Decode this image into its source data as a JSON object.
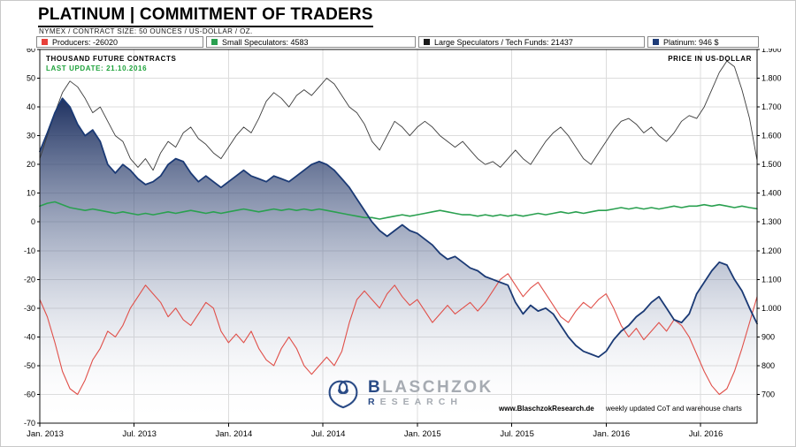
{
  "header": {
    "title": "PLATINUM | COMMITMENT OF TRADERS",
    "subtitle": "NYMEX / CONTRACT SIZE: 50 OUNCES / US-DOLLAR / OZ."
  },
  "legend": {
    "items": [
      {
        "label": "Producers: -26020",
        "color": "#e8403a"
      },
      {
        "label": "Small Speculators: 4583",
        "color": "#2aa050"
      },
      {
        "label": "Large Speculators / Tech Funds:  21437",
        "color": "#1a1a1a"
      },
      {
        "label": "Platinum: 946 $",
        "color": "#1e3c78"
      }
    ]
  },
  "chart": {
    "left_axis_title": "THOUSAND FUTURE CONTRACTS",
    "last_update": "LAST UPDATE: 21.10.2016",
    "right_axis_title": "PRICE IN US-DOLLAR",
    "footer_url": "www.BlaschzokResearch.de",
    "footer_note": "weekly updated CoT and warehouse charts",
    "watermark": {
      "b1": "B",
      "rest1": "LASCHZOK",
      "b2": "R",
      "rest2": "ESEARCH"
    }
  },
  "chart_data": {
    "type": "line",
    "title": "Platinum | Commitment of Traders",
    "x_unit": "years since Jan 2013, uniform sampling",
    "x_range": [
      0,
      3.8
    ],
    "x_tick_positions": [
      0,
      0.5,
      1.0,
      1.5,
      2.0,
      2.5,
      3.0,
      3.5
    ],
    "x_tick_labels": [
      "Jan. 2013",
      "Jul. 2013",
      "Jan. 2014",
      "Jul. 2014",
      "Jan. 2015",
      "Jul. 2015",
      "Jan. 2016",
      "Jul. 2016"
    ],
    "left_ylim": [
      -70,
      60
    ],
    "left_ticks": [
      60,
      50,
      40,
      30,
      20,
      10,
      0,
      -10,
      -20,
      -30,
      -40,
      -50,
      -60,
      -70
    ],
    "right_axis": {
      "labels": [
        "1.900",
        "1.800",
        "1.700",
        "1.600",
        "1.500",
        "1.400",
        "1.300",
        "1.200",
        "1.100",
        "1.000",
        "900",
        "800",
        "700"
      ],
      "prices": [
        1900,
        1800,
        1700,
        1600,
        1500,
        1400,
        1300,
        1200,
        1100,
        1000,
        900,
        800,
        700
      ],
      "price_at_v0": 1300,
      "price_per_unit": 10
    },
    "grid": true,
    "legend_position": "top",
    "series": [
      {
        "name": "Producers",
        "axis": "left",
        "color": "#e0504a",
        "line_width": 1.1,
        "values": [
          -27,
          -33,
          -42,
          -52,
          -58,
          -60,
          -55,
          -48,
          -44,
          -38,
          -40,
          -36,
          -30,
          -26,
          -22,
          -25,
          -28,
          -33,
          -30,
          -34,
          -36,
          -32,
          -28,
          -30,
          -38,
          -42,
          -39,
          -42,
          -38,
          -44,
          -48,
          -50,
          -44,
          -40,
          -44,
          -50,
          -53,
          -50,
          -47,
          -50,
          -45,
          -35,
          -27,
          -24,
          -27,
          -30,
          -25,
          -22,
          -26,
          -29,
          -27,
          -31,
          -35,
          -32,
          -29,
          -32,
          -30,
          -28,
          -31,
          -28,
          -24,
          -20,
          -18,
          -22,
          -26,
          -23,
          -21,
          -25,
          -29,
          -33,
          -35,
          -31,
          -28,
          -30,
          -27,
          -25,
          -30,
          -36,
          -40,
          -37,
          -41,
          -38,
          -35,
          -38,
          -34,
          -36,
          -40,
          -46,
          -52,
          -57,
          -60,
          -58,
          -52,
          -44,
          -35,
          -26
        ]
      },
      {
        "name": "Small Speculators",
        "axis": "left",
        "color": "#2aa050",
        "line_width": 1.6,
        "values": [
          5.5,
          6.5,
          7,
          6,
          5,
          4.5,
          4,
          4.5,
          4,
          3.5,
          3,
          3.5,
          3,
          2.5,
          3,
          2.5,
          3,
          3.5,
          3,
          3.5,
          4,
          3.5,
          3,
          3.5,
          3,
          3.5,
          4,
          4.5,
          4,
          3.5,
          4,
          4.5,
          4,
          4.5,
          4,
          4.5,
          4,
          4.5,
          4,
          3.5,
          3,
          2.5,
          2,
          1.5,
          1.5,
          1,
          1.5,
          2,
          2.5,
          2,
          2.5,
          3,
          3.5,
          4,
          3.5,
          3,
          2.5,
          2.5,
          2,
          2.5,
          2,
          2.5,
          2,
          2.5,
          2,
          2.5,
          3,
          2.5,
          3,
          3.5,
          3,
          3.5,
          3,
          3.5,
          4,
          4,
          4.5,
          5,
          4.5,
          5,
          4.5,
          5,
          4.5,
          5,
          5.5,
          5,
          5.5,
          5.5,
          6,
          5.5,
          6,
          5.5,
          5,
          5.5,
          5,
          4.6
        ]
      },
      {
        "name": "Large Speculators / Tech Funds",
        "axis": "left",
        "color": "#3c3c3c",
        "line_width": 0.9,
        "values": [
          22,
          30,
          38,
          45,
          49,
          47,
          43,
          38,
          40,
          35,
          30,
          28,
          22,
          19,
          22,
          18,
          24,
          28,
          26,
          31,
          33,
          29,
          27,
          24,
          22,
          26,
          30,
          33,
          31,
          36,
          42,
          45,
          43,
          40,
          44,
          46,
          44,
          47,
          50,
          48,
          44,
          40,
          38,
          34,
          28,
          25,
          30,
          35,
          33,
          30,
          33,
          35,
          33,
          30,
          28,
          26,
          28,
          25,
          22,
          20,
          21,
          19,
          22,
          25,
          22,
          20,
          24,
          28,
          31,
          33,
          30,
          26,
          22,
          20,
          24,
          28,
          32,
          35,
          36,
          34,
          31,
          33,
          30,
          28,
          31,
          35,
          37,
          36,
          40,
          46,
          52,
          56,
          54,
          46,
          36,
          21.4
        ]
      },
      {
        "name": "Platinum",
        "axis": "right",
        "color": "#1b3a75",
        "line_width": 1.8,
        "fill": true,
        "fill_gradient": [
          "rgba(18,38,88,0.95)",
          "rgba(96,112,150,0.42)",
          "rgba(255,255,255,0)"
        ],
        "values": [
          1545,
          1610,
          1680,
          1730,
          1700,
          1640,
          1600,
          1620,
          1580,
          1500,
          1470,
          1500,
          1480,
          1450,
          1430,
          1440,
          1460,
          1500,
          1520,
          1510,
          1470,
          1440,
          1460,
          1440,
          1420,
          1440,
          1460,
          1480,
          1460,
          1450,
          1440,
          1460,
          1450,
          1440,
          1460,
          1480,
          1500,
          1510,
          1500,
          1480,
          1450,
          1420,
          1380,
          1340,
          1300,
          1270,
          1250,
          1270,
          1290,
          1270,
          1260,
          1240,
          1220,
          1190,
          1170,
          1180,
          1160,
          1140,
          1130,
          1110,
          1100,
          1090,
          1080,
          1020,
          980,
          1010,
          990,
          1000,
          980,
          940,
          900,
          870,
          850,
          840,
          830,
          850,
          890,
          920,
          940,
          970,
          990,
          1020,
          1040,
          1000,
          960,
          950,
          980,
          1050,
          1090,
          1130,
          1160,
          1150,
          1100,
          1060,
          1000,
          946
        ]
      }
    ]
  }
}
